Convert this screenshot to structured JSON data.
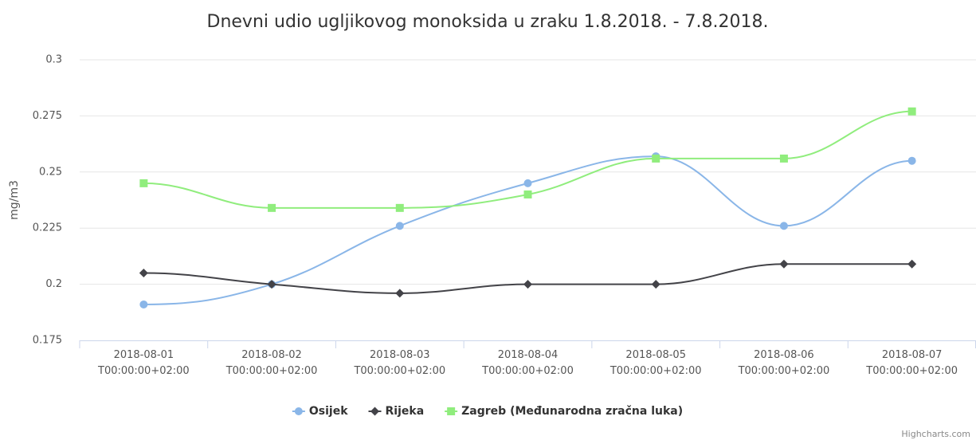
{
  "chart_data": {
    "type": "spline",
    "title": "Dnevni udio ugljikovog monoksida u zraku 1.8.2018. - 7.8.2018.",
    "y_label": "mg/m3",
    "categories": [
      "2018-08-01T00:00:00+02:00",
      "2018-08-02T00:00:00+02:00",
      "2018-08-03T00:00:00+02:00",
      "2018-08-04T00:00:00+02:00",
      "2018-08-05T00:00:00+02:00",
      "2018-08-06T00:00:00+02:00",
      "2018-08-07T00:00:00+02:00"
    ],
    "series": [
      {
        "name": "Osijek",
        "color": "#8ab6e8",
        "marker": "circle",
        "values": [
          0.191,
          0.2,
          0.226,
          0.245,
          0.257,
          0.226,
          0.255
        ]
      },
      {
        "name": "Rijeka",
        "color": "#434348",
        "marker": "diamond",
        "values": [
          0.205,
          0.2,
          0.196,
          0.2,
          0.2,
          0.209,
          0.209
        ]
      },
      {
        "name": "Zagreb (Međunarodna zračna luka)",
        "color": "#90ed7d",
        "marker": "square",
        "values": [
          0.245,
          0.234,
          0.234,
          0.24,
          0.256,
          0.256,
          0.277
        ]
      }
    ],
    "ylim": [
      0.175,
      0.3
    ],
    "yticks": [
      0.175,
      0.2,
      0.225,
      0.25,
      0.275,
      0.3
    ],
    "grid": true,
    "legend": "bottom",
    "credits": "Highcharts.com"
  }
}
